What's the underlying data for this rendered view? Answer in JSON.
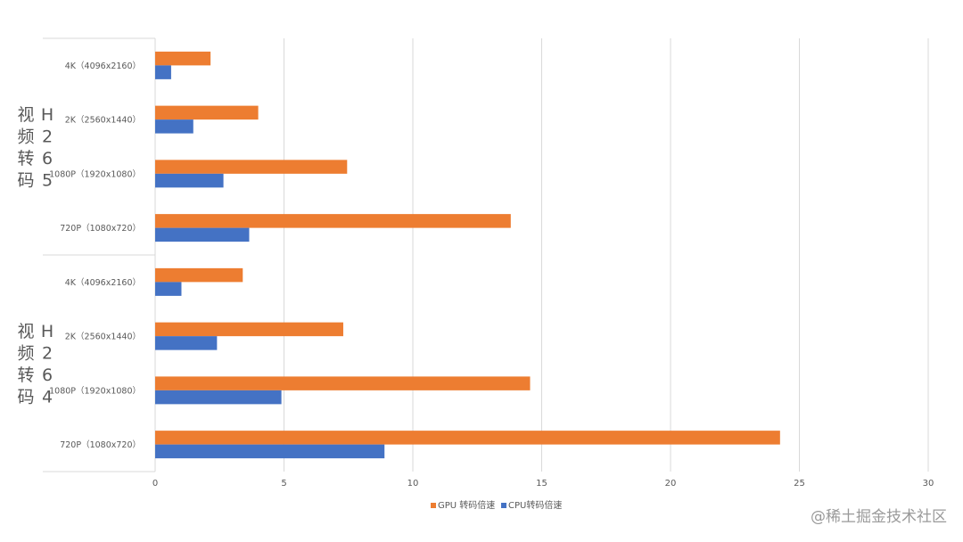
{
  "chart_data": {
    "type": "bar",
    "orientation": "horizontal",
    "groups": [
      {
        "label": "视频转码H265",
        "label_col1": "视频转码",
        "label_col2": "H265",
        "categories": [
          "4K（4096x2160）",
          "2K（2560x1440）",
          "1080P（1920x1080）",
          "720P（1080x720）"
        ]
      },
      {
        "label": "视频转码H264",
        "label_col1": "视频转码",
        "label_col2": "H264",
        "categories": [
          "4K（4096x2160）",
          "2K（2560x1440）",
          "1080P（1920x1080）",
          "720P（1080x720）"
        ]
      }
    ],
    "series": [
      {
        "name": "GPU 转码倍速",
        "color": "#ED7D31",
        "values": [
          2.15,
          4.0,
          7.45,
          13.8,
          3.4,
          7.3,
          14.55,
          24.25
        ]
      },
      {
        "name": "CPU转码倍速",
        "color": "#4472C4",
        "values": [
          0.62,
          1.48,
          2.65,
          3.65,
          1.02,
          2.4,
          4.9,
          8.9
        ]
      }
    ],
    "xlim": [
      0,
      30
    ],
    "xticks": [
      "0",
      "5",
      "10",
      "15",
      "20",
      "25",
      "30"
    ],
    "grid": true,
    "legend": "bottom"
  },
  "watermark": "@稀土掘金技术社区"
}
